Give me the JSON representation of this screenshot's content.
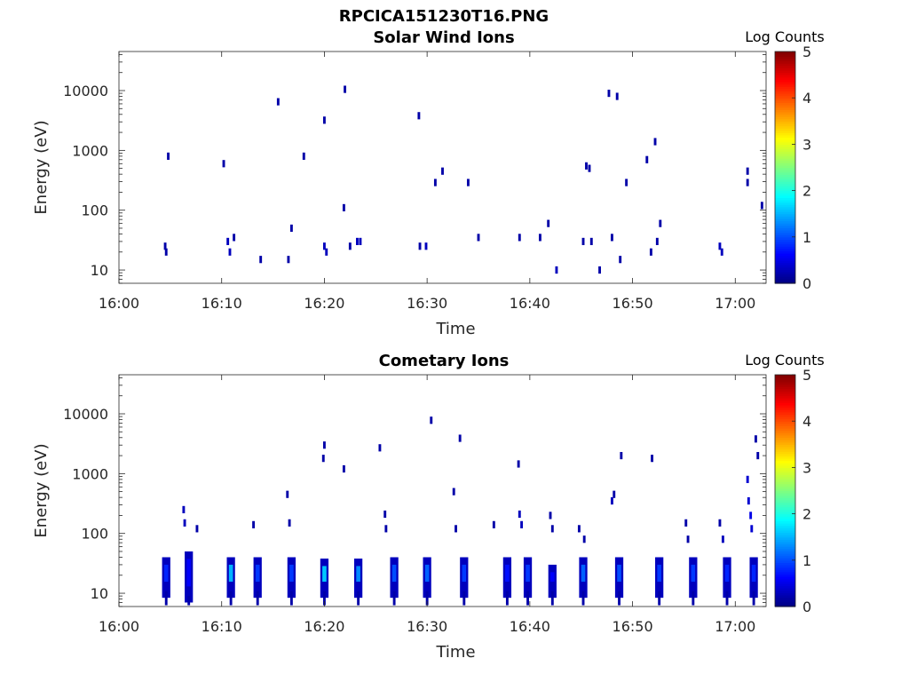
{
  "figure_title": "RPCICA151230T16.PNG",
  "chart_data": [
    {
      "type": "heatmap",
      "title": "Solar Wind Ions",
      "xlabel": "Time",
      "ylabel": "Energy (eV)",
      "x_range": [
        "16:00",
        "17:03"
      ],
      "y_range": [
        6,
        45000
      ],
      "y_scale": "log",
      "x_ticks": [
        "16:00",
        "16:10",
        "16:20",
        "16:30",
        "16:40",
        "16:50",
        "17:00"
      ],
      "y_ticks": [
        "10",
        "100",
        "1000",
        "10000"
      ],
      "colorbar": {
        "label": "Log Counts",
        "range": [
          0,
          5
        ],
        "ticks": [
          "0",
          "1",
          "2",
          "3",
          "4",
          "5"
        ],
        "colormap": "jet"
      },
      "cells": [
        [
          "16:04.5",
          25,
          0.2
        ],
        [
          "16:04.6",
          20,
          0.2
        ],
        [
          "16:04.8",
          800,
          0.2
        ],
        [
          "16:10.2",
          600,
          0.2
        ],
        [
          "16:10.6",
          30,
          0.3
        ],
        [
          "16:10.8",
          20,
          0.3
        ],
        [
          "16:11.2",
          35,
          0.2
        ],
        [
          "16:13.8",
          15,
          0.2
        ],
        [
          "16:15.5",
          6500,
          0.2
        ],
        [
          "16:16.5",
          15,
          0.2
        ],
        [
          "16:16.8",
          50,
          0.2
        ],
        [
          "16:18.0",
          800,
          0.2
        ],
        [
          "16:20.0",
          3200,
          0.2
        ],
        [
          "16:20.0",
          25,
          0.3
        ],
        [
          "16:20.2",
          20,
          0.3
        ],
        [
          "16:21.9",
          110,
          0.2
        ],
        [
          "16:22.0",
          10500,
          0.2
        ],
        [
          "16:22.5",
          25,
          0.2
        ],
        [
          "16:23.2",
          30,
          0.3
        ],
        [
          "16:23.5",
          30,
          0.3
        ],
        [
          "16:29.2",
          3800,
          0.2
        ],
        [
          "16:29.3",
          25,
          0.2
        ],
        [
          "16:29.9",
          25,
          0.3
        ],
        [
          "16:30.8",
          290,
          0.2
        ],
        [
          "16:31.5",
          450,
          0.2
        ],
        [
          "16:34.0",
          290,
          0.2
        ],
        [
          "16:35.0",
          35,
          0.2
        ],
        [
          "16:39.0",
          35,
          0.2
        ],
        [
          "16:41.0",
          35,
          0.2
        ],
        [
          "16:41.8",
          60,
          0.2
        ],
        [
          "16:42.6",
          10,
          0.3
        ],
        [
          "16:45.2",
          30,
          0.2
        ],
        [
          "16:45.5",
          550,
          0.2
        ],
        [
          "16:45.8",
          500,
          0.2
        ],
        [
          "16:46.0",
          30,
          0.2
        ],
        [
          "16:46.8",
          10,
          0.2
        ],
        [
          "16:47.7",
          9000,
          0.2
        ],
        [
          "16:48.0",
          35,
          0.2
        ],
        [
          "16:48.5",
          8000,
          0.2
        ],
        [
          "16:48.8",
          15,
          0.2
        ],
        [
          "16:49.4",
          290,
          0.2
        ],
        [
          "16:51.4",
          700,
          0.2
        ],
        [
          "16:51.8",
          20,
          0.2
        ],
        [
          "16:52.2",
          1400,
          0.2
        ],
        [
          "16:52.4",
          30,
          0.2
        ],
        [
          "16:52.7",
          60,
          0.2
        ],
        [
          "16:58.5",
          25,
          0.3
        ],
        [
          "16:58.7",
          20,
          0.3
        ],
        [
          "17:01.2",
          450,
          0.2
        ],
        [
          "17:01.2",
          290,
          0.2
        ],
        [
          "17:02.6",
          120,
          0.2
        ]
      ]
    },
    {
      "type": "heatmap",
      "title": "Cometary Ions",
      "xlabel": "Time",
      "ylabel": "Energy (eV)",
      "x_range": [
        "16:00",
        "17:03"
      ],
      "y_range": [
        6,
        45000
      ],
      "y_scale": "log",
      "x_ticks": [
        "16:00",
        "16:10",
        "16:20",
        "16:30",
        "16:40",
        "16:50",
        "17:00"
      ],
      "y_ticks": [
        "10",
        "100",
        "1000",
        "10000"
      ],
      "colorbar": {
        "label": "Log Counts",
        "range": [
          0,
          5
        ],
        "ticks": [
          "0",
          "1",
          "2",
          "3",
          "4",
          "5"
        ],
        "colormap": "jet"
      },
      "blobs": [
        [
          "16:04.6",
          40,
          12,
          0.8
        ],
        [
          "16:06.8",
          50,
          10,
          0.6
        ],
        [
          "16:10.9",
          40,
          12,
          1.5
        ],
        [
          "16:13.5",
          40,
          12,
          0.9
        ],
        [
          "16:16.8",
          40,
          12,
          0.9
        ],
        [
          "16:20.0",
          38,
          12,
          1.6
        ],
        [
          "16:23.3",
          38,
          12,
          1.3
        ],
        [
          "16:26.8",
          40,
          12,
          1.0
        ],
        [
          "16:30.0",
          40,
          12,
          1.1
        ],
        [
          "16:33.6",
          40,
          12,
          0.9
        ],
        [
          "16:37.8",
          40,
          12,
          0.7
        ],
        [
          "16:39.8",
          40,
          12,
          0.9
        ],
        [
          "16:42.2",
          30,
          12,
          0.6
        ],
        [
          "16:45.2",
          40,
          12,
          1.1
        ],
        [
          "16:48.7",
          40,
          12,
          1.0
        ],
        [
          "16:52.6",
          40,
          12,
          0.9
        ],
        [
          "16:55.9",
          40,
          12,
          0.9
        ],
        [
          "16:59.2",
          40,
          12,
          0.8
        ],
        [
          "17:01.8",
          40,
          12,
          0.8
        ]
      ],
      "cells": [
        [
          "16:06.3",
          250,
          0.3
        ],
        [
          "16:06.4",
          150,
          0.3
        ],
        [
          "16:07.6",
          120,
          0.2
        ],
        [
          "16:13.1",
          140,
          0.2
        ],
        [
          "16:16.4",
          450,
          0.2
        ],
        [
          "16:16.6",
          150,
          0.2
        ],
        [
          "16:19.9",
          1800,
          0.2
        ],
        [
          "16:20.0",
          3000,
          0.2
        ],
        [
          "16:21.9",
          1200,
          0.2
        ],
        [
          "16:25.4",
          2700,
          0.2
        ],
        [
          "16:25.9",
          210,
          0.2
        ],
        [
          "16:26.0",
          120,
          0.2
        ],
        [
          "16:30.4",
          7800,
          0.2
        ],
        [
          "16:32.6",
          500,
          0.2
        ],
        [
          "16:33.2",
          3900,
          0.2
        ],
        [
          "16:32.8",
          120,
          0.2
        ],
        [
          "16:36.5",
          140,
          0.2
        ],
        [
          "16:38.9",
          1450,
          0.2
        ],
        [
          "16:39.0",
          210,
          0.3
        ],
        [
          "16:39.2",
          140,
          0.3
        ],
        [
          "16:42.0",
          200,
          0.2
        ],
        [
          "16:42.2",
          120,
          0.2
        ],
        [
          "16:44.8",
          120,
          0.2
        ],
        [
          "16:45.3",
          80,
          0.2
        ],
        [
          "16:48.0",
          350,
          0.3
        ],
        [
          "16:48.2",
          450,
          0.2
        ],
        [
          "16:48.9",
          2000,
          0.2
        ],
        [
          "16:51.9",
          1800,
          0.2
        ],
        [
          "16:55.2",
          150,
          0.2
        ],
        [
          "16:55.4",
          80,
          0.2
        ],
        [
          "16:58.5",
          150,
          0.2
        ],
        [
          "16:58.8",
          80,
          0.3
        ],
        [
          "17:01.2",
          800,
          0.4
        ],
        [
          "17:01.3",
          350,
          0.4
        ],
        [
          "17:01.5",
          200,
          0.5
        ],
        [
          "17:01.6",
          120,
          0.4
        ],
        [
          "17:02.0",
          3800,
          0.2
        ],
        [
          "17:02.2",
          2000,
          0.2
        ]
      ]
    }
  ]
}
